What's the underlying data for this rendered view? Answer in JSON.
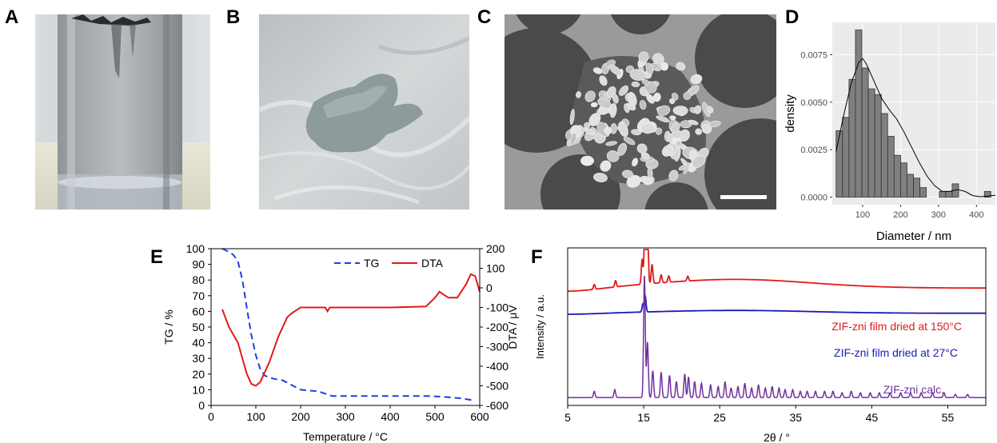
{
  "panels": {
    "a": "A",
    "b": "B",
    "c": "C",
    "d": "D",
    "e": "E",
    "f": "F"
  },
  "colors": {
    "tg": "#1f3fdc",
    "dta": "#e01b1b",
    "film150": "#e01b1b",
    "film27": "#1a1ab8",
    "calc": "#7030a0",
    "hist_bar": "#7f7f7f",
    "hist_bg": "#ebebeb"
  },
  "chart_data": [
    {
      "type": "bar",
      "panel": "D",
      "xlabel": "Diameter / nm",
      "ylabel": "density",
      "xlim": [
        20,
        450
      ],
      "ylim": [
        -0.0004,
        0.0092
      ],
      "xticks": [
        100,
        200,
        300,
        400
      ],
      "xtick_labels": [
        "100",
        "200",
        "300",
        "400"
      ],
      "yticks": [
        0,
        0.0025,
        0.005,
        0.0075
      ],
      "ytick_labels": [
        "0.0000",
        "0.0025",
        "0.0050",
        "0.0075"
      ],
      "grid": true,
      "bin_width": 17,
      "bin_start": 30,
      "values": [
        0.0035,
        0.0042,
        0.0062,
        0.0088,
        0.0068,
        0.0057,
        0.0054,
        0.0044,
        0.0032,
        0.0022,
        0.0018,
        0.0012,
        0.001,
        0.0005,
        0,
        0,
        0.0003,
        0.0003,
        0.0007,
        0,
        0,
        0,
        0,
        0.0003
      ],
      "density_curve": {
        "x": [
          30,
          50,
          70,
          90,
          100,
          110,
          130,
          150,
          170,
          190,
          210,
          230,
          250,
          270,
          290,
          310,
          330,
          350,
          370,
          390,
          410,
          430,
          450
        ],
        "y": [
          0.0024,
          0.0043,
          0.006,
          0.0071,
          0.0073,
          0.007,
          0.0061,
          0.0052,
          0.0046,
          0.0041,
          0.0034,
          0.0026,
          0.0018,
          0.0011,
          0.0006,
          0.0003,
          0.0003,
          0.0004,
          0.0003,
          8e-05,
          2e-05,
          5e-05,
          0.0001
        ]
      }
    },
    {
      "type": "line",
      "panel": "E",
      "xlabel": "Temperature / °C",
      "ylabel": "TG / %",
      "y2label": "DTA / μV",
      "xlim": [
        0,
        600
      ],
      "ylim": [
        0,
        100
      ],
      "y2lim": [
        -600,
        200
      ],
      "xticks": [
        0,
        100,
        200,
        300,
        400,
        500,
        600
      ],
      "xtick_labels": [
        "0",
        "100",
        "200",
        "300",
        "400",
        "500",
        "600"
      ],
      "yticks": [
        0,
        10,
        20,
        30,
        40,
        50,
        60,
        70,
        80,
        90,
        100
      ],
      "ytick_labels": [
        "0",
        "10",
        "20",
        "30",
        "40",
        "50",
        "60",
        "70",
        "80",
        "90",
        "100"
      ],
      "y2ticks": [
        -600,
        -500,
        -400,
        -300,
        -200,
        -100,
        0,
        100,
        200
      ],
      "y2tick_labels": [
        "-600",
        "-500",
        "-400",
        "-300",
        "-200",
        "-100",
        "0",
        "100",
        "200"
      ],
      "legend_position": "top-right",
      "series": [
        {
          "name": "TG",
          "axis": "left",
          "style": "dashed",
          "x": [
            25,
            40,
            50,
            60,
            70,
            80,
            90,
            100,
            110,
            120,
            140,
            160,
            180,
            200,
            220,
            240,
            260,
            270,
            300,
            400,
            480,
            520,
            560,
            590
          ],
          "y": [
            100,
            98,
            96,
            92,
            80,
            62,
            45,
            32,
            23,
            19,
            17,
            16,
            13,
            10,
            9.5,
            9,
            7,
            6,
            6,
            6,
            6,
            5.5,
            4.5,
            3
          ]
        },
        {
          "name": "DTA",
          "axis": "right",
          "x": [
            25,
            40,
            60,
            80,
            90,
            100,
            110,
            130,
            150,
            170,
            180,
            200,
            220,
            255,
            260,
            265,
            280,
            400,
            480,
            500,
            510,
            530,
            550,
            570,
            580,
            590,
            600
          ],
          "y": [
            -110,
            -200,
            -280,
            -440,
            -490,
            -500,
            -480,
            -380,
            -250,
            -150,
            -130,
            -100,
            -100,
            -100,
            -120,
            -100,
            -100,
            -100,
            -95,
            -50,
            -20,
            -50,
            -50,
            20,
            70,
            60,
            -20
          ]
        }
      ]
    },
    {
      "type": "line",
      "panel": "F",
      "xlabel": "2θ / °",
      "ylabel": "Intensity / a.u.",
      "xlim": [
        5,
        60
      ],
      "xticks": [
        5,
        15,
        25,
        35,
        45,
        55
      ],
      "xtick_labels": [
        "5",
        "15",
        "25",
        "35",
        "45",
        "55"
      ],
      "series": [
        {
          "name": "ZIF-zni film dried at 150°C",
          "baseline": 0.745,
          "hump": 0.055,
          "peaks": [
            [
              8.5,
              0.03
            ],
            [
              11.3,
              0.04
            ],
            [
              14.8,
              0.16
            ],
            [
              15.2,
              0.62
            ],
            [
              15.5,
              0.36
            ],
            [
              16.1,
              0.12
            ],
            [
              17.3,
              0.05
            ],
            [
              18.3,
              0.04
            ],
            [
              20.8,
              0.03
            ]
          ]
        },
        {
          "name": "ZIF-zni film dried at 27°C",
          "baseline": 0.585,
          "hump": 0.018,
          "peaks": [
            [
              14.9,
              0.05
            ],
            [
              15.2,
              0.1
            ]
          ]
        },
        {
          "name": "ZIF-zni calc.",
          "baseline": 0.05,
          "hump": 0,
          "peaks": [
            [
              8.5,
              0.04
            ],
            [
              11.2,
              0.05
            ],
            [
              15.1,
              0.78
            ],
            [
              15.5,
              0.35
            ],
            [
              16.2,
              0.17
            ],
            [
              17.3,
              0.16
            ],
            [
              18.4,
              0.14
            ],
            [
              19.3,
              0.1
            ],
            [
              20.4,
              0.15
            ],
            [
              20.9,
              0.13
            ],
            [
              21.7,
              0.1
            ],
            [
              22.6,
              0.09
            ],
            [
              23.8,
              0.08
            ],
            [
              24.8,
              0.07
            ],
            [
              25.7,
              0.1
            ],
            [
              26.5,
              0.06
            ],
            [
              27.4,
              0.07
            ],
            [
              28.3,
              0.09
            ],
            [
              29.2,
              0.06
            ],
            [
              30.1,
              0.08
            ],
            [
              31.0,
              0.06
            ],
            [
              31.9,
              0.07
            ],
            [
              32.8,
              0.06
            ],
            [
              33.6,
              0.05
            ],
            [
              34.6,
              0.05
            ],
            [
              35.6,
              0.04
            ],
            [
              36.5,
              0.04
            ],
            [
              37.6,
              0.04
            ],
            [
              38.8,
              0.04
            ],
            [
              39.9,
              0.04
            ],
            [
              41.1,
              0.03
            ],
            [
              42.3,
              0.04
            ],
            [
              43.5,
              0.03
            ],
            [
              44.8,
              0.03
            ],
            [
              46.0,
              0.03
            ],
            [
              47.4,
              0.03
            ],
            [
              48.8,
              0.03
            ],
            [
              50.1,
              0.03
            ],
            [
              51.5,
              0.03
            ],
            [
              53.0,
              0.03
            ],
            [
              54.5,
              0.03
            ],
            [
              56.0,
              0.02
            ],
            [
              57.6,
              0.02
            ]
          ]
        }
      ]
    }
  ]
}
